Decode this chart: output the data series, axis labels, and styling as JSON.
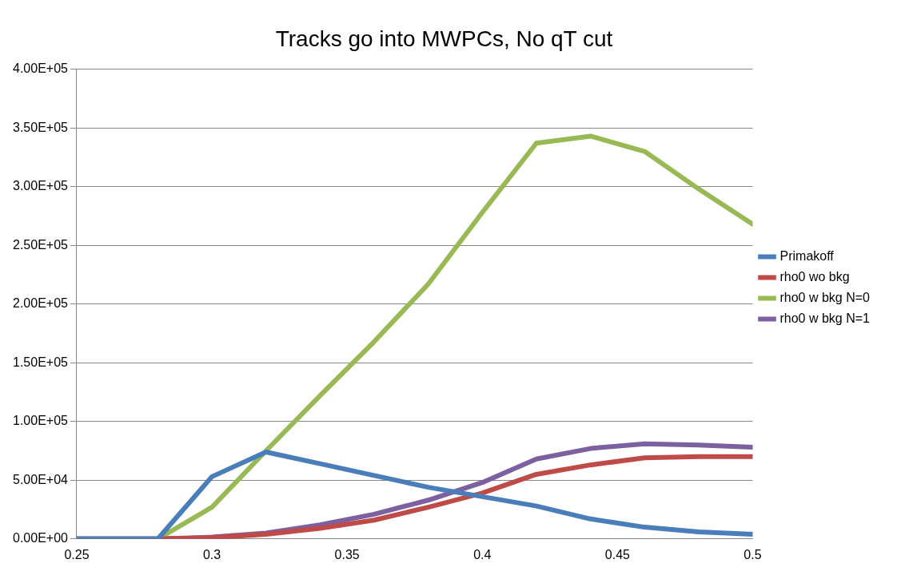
{
  "chart_data": {
    "type": "line",
    "title": "Tracks go into MWPCs, No qT cut",
    "x": [
      0.25,
      0.26,
      0.28,
      0.3,
      0.32,
      0.34,
      0.36,
      0.38,
      0.4,
      0.42,
      0.44,
      0.46,
      0.48,
      0.5
    ],
    "series": [
      {
        "name": "Primakoff",
        "color": "#4a7ebb",
        "values": [
          0,
          0,
          0,
          53000,
          74000,
          64000,
          54000,
          44000,
          36000,
          28000,
          17000,
          10000,
          6000,
          4000
        ]
      },
      {
        "name": "rho0 wo bkg",
        "color": "#be4b48",
        "values": [
          0,
          0,
          0,
          1000,
          4000,
          9000,
          16000,
          27000,
          39000,
          55000,
          63000,
          69000,
          70000,
          70000
        ]
      },
      {
        "name": "rho0 w bkg N=0",
        "color": "#98b954",
        "values": [
          0,
          0,
          0,
          27000,
          75000,
          122000,
          168000,
          217000,
          278000,
          337000,
          343000,
          330000,
          298000,
          268000
        ]
      },
      {
        "name": "rho0 w bkg N=1",
        "color": "#7d60a0",
        "values": [
          0,
          0,
          0,
          1500,
          5000,
          12000,
          21000,
          33000,
          48000,
          68000,
          77000,
          81000,
          80000,
          78000
        ]
      }
    ],
    "xlim": [
      0.25,
      0.5
    ],
    "xticks": [
      0.25,
      0.3,
      0.35,
      0.4,
      0.45,
      0.5
    ],
    "ylim": [
      0,
      400000
    ],
    "yticks": [
      {
        "value": 0,
        "label": "0.00E+00"
      },
      {
        "value": 50000,
        "label": "5.00E+04"
      },
      {
        "value": 100000,
        "label": "1.00E+05"
      },
      {
        "value": 150000,
        "label": "1.50E+05"
      },
      {
        "value": 200000,
        "label": "2.00E+05"
      },
      {
        "value": 250000,
        "label": "2.50E+05"
      },
      {
        "value": 300000,
        "label": "3.00E+05"
      },
      {
        "value": 350000,
        "label": "3.50E+05"
      },
      {
        "value": 400000,
        "label": "4.00E+05"
      }
    ],
    "grid": "y",
    "legend": "right",
    "marker": "none",
    "line_style": "solid"
  }
}
